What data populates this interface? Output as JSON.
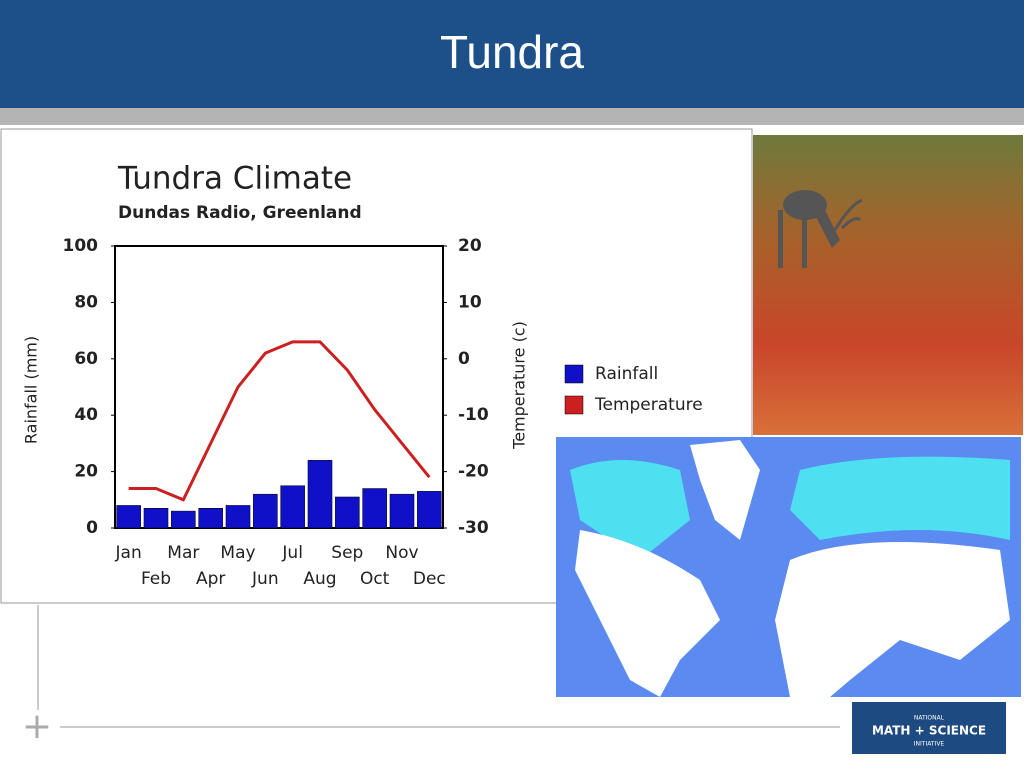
{
  "slide_title": "Tundra",
  "logo": {
    "line1": "NATIONAL",
    "line2": "MATH + SCIENCE",
    "line3": "INITIATIVE"
  },
  "chart_data": {
    "type": "bar",
    "title": "Tundra Climate",
    "subtitle": "Dundas Radio, Greenland",
    "y_label": "Rainfall (mm)",
    "y2_label": "Temperature (c)",
    "categories": [
      "Jan",
      "Feb",
      "Mar",
      "Apr",
      "May",
      "Jun",
      "Jul",
      "Aug",
      "Sep",
      "Oct",
      "Nov",
      "Dec"
    ],
    "series": [
      {
        "name": "Rainfall",
        "color": "#1010c8",
        "values": [
          8,
          7,
          6,
          7,
          8,
          12,
          15,
          24,
          11,
          14,
          12,
          13
        ]
      },
      {
        "name": "Temperature",
        "color": "#cc2020",
        "type": "line",
        "axis": "y2",
        "values": [
          -23,
          -23,
          -25,
          -15,
          -5,
          1,
          3,
          3,
          -2,
          -9,
          -15,
          -21
        ]
      }
    ],
    "ylim": [
      0,
      100
    ],
    "yticks": [
      0,
      20,
      40,
      60,
      80,
      100
    ],
    "y2lim": [
      -30,
      20
    ],
    "y2ticks": [
      -30,
      -20,
      -10,
      0,
      10,
      20
    ],
    "grid": false,
    "legend": "right"
  }
}
